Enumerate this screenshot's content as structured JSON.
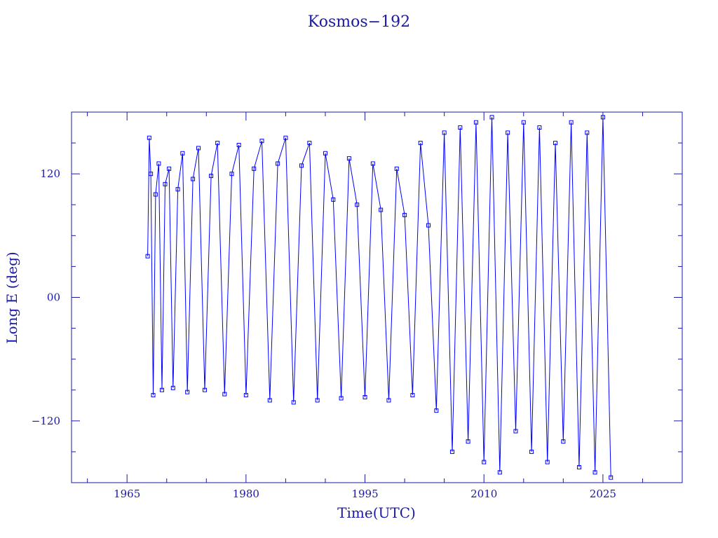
{
  "chart_data": {
    "type": "line",
    "title": "Kosmos−192",
    "xlabel": "Time(UTC)",
    "ylabel": "Long E (deg)",
    "xlim": [
      1958,
      2035
    ],
    "ylim": [
      -180,
      180
    ],
    "x_ticks": [
      1965,
      1980,
      1995,
      2010,
      2025
    ],
    "x_tick_labels": [
      "1965",
      "1980",
      "1995",
      "2010",
      "2025"
    ],
    "y_ticks": [
      -120,
      0,
      120
    ],
    "y_tick_labels": [
      "−120",
      "00",
      "120"
    ],
    "grid": false,
    "legend": "none",
    "series": [
      {
        "color": "#0000ff",
        "marker": "square",
        "x": [
          1967.6,
          1967.8,
          1968.0,
          1968.3,
          1968.6,
          1969.0,
          1969.4,
          1969.8,
          1970.3,
          1970.8,
          1971.4,
          1972.0,
          1972.6,
          1973.3,
          1974.0,
          1974.8,
          1975.6,
          1976.4,
          1977.3,
          1978.2,
          1979.1,
          1980.0,
          1981.0,
          1982.0,
          1983.0,
          1984.0,
          1985.0,
          1986.0,
          1987.0,
          1988.0,
          1989.0,
          1990.0,
          1991.0,
          1992.0,
          1993.0,
          1994.0,
          1995.0,
          1996.0,
          1997.0,
          1998.0,
          1999.0,
          2000.0,
          2001.0,
          2002.0,
          2003.0,
          2004.0,
          2005.0,
          2006.0,
          2007.0,
          2008.0,
          2009.0,
          2010.0,
          2011.0,
          2012.0,
          2013.0,
          2014.0,
          2015.0,
          2016.0,
          2017.0,
          2018.0,
          2019.0,
          2020.0,
          2021.0,
          2022.0,
          2023.0,
          2024.0,
          2025.0,
          2026.0
        ],
        "y": [
          40,
          155,
          120,
          -95,
          100,
          130,
          -90,
          110,
          125,
          -88,
          105,
          140,
          -92,
          115,
          145,
          -90,
          118,
          150,
          -94,
          120,
          148,
          -95,
          125,
          152,
          -100,
          130,
          155,
          -102,
          128,
          150,
          -100,
          140,
          95,
          -98,
          135,
          90,
          -97,
          130,
          85,
          -100,
          125,
          80,
          -95,
          150,
          70,
          -110,
          160,
          -150,
          165,
          -140,
          170,
          -160,
          175,
          -170,
          160,
          -130,
          170,
          -150,
          165,
          -160,
          150,
          -140,
          170,
          -165,
          160,
          -170,
          175,
          -175
        ]
      }
    ]
  }
}
